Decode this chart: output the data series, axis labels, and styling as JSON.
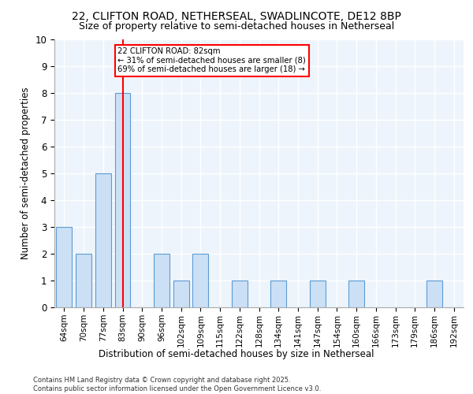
{
  "title1": "22, CLIFTON ROAD, NETHERSEAL, SWADLINCOTE, DE12 8BP",
  "title2": "Size of property relative to semi-detached houses in Netherseal",
  "xlabel": "Distribution of semi-detached houses by size in Netherseal",
  "ylabel": "Number of semi-detached properties",
  "categories": [
    "64sqm",
    "70sqm",
    "77sqm",
    "83sqm",
    "90sqm",
    "96sqm",
    "102sqm",
    "109sqm",
    "115sqm",
    "122sqm",
    "128sqm",
    "134sqm",
    "141sqm",
    "147sqm",
    "154sqm",
    "160sqm",
    "166sqm",
    "173sqm",
    "179sqm",
    "186sqm",
    "192sqm"
  ],
  "values": [
    3,
    2,
    5,
    8,
    0,
    2,
    1,
    2,
    0,
    1,
    0,
    1,
    0,
    1,
    0,
    1,
    0,
    0,
    0,
    1,
    0
  ],
  "bar_color": "#cce0f5",
  "bar_edge_color": "#5b9bd5",
  "red_line_index": 3,
  "annotation_title": "22 CLIFTON ROAD: 82sqm",
  "annotation_line2": "← 31% of semi-detached houses are smaller (8)",
  "annotation_line3": "69% of semi-detached houses are larger (18) →",
  "ylim": [
    0,
    10
  ],
  "yticks": [
    0,
    1,
    2,
    3,
    4,
    5,
    6,
    7,
    8,
    9,
    10
  ],
  "footer1": "Contains HM Land Registry data © Crown copyright and database right 2025.",
  "footer2": "Contains public sector information licensed under the Open Government Licence v3.0.",
  "background_color": "#eef4fb",
  "grid_color": "#ffffff",
  "title1_fontsize": 10,
  "title2_fontsize": 9
}
